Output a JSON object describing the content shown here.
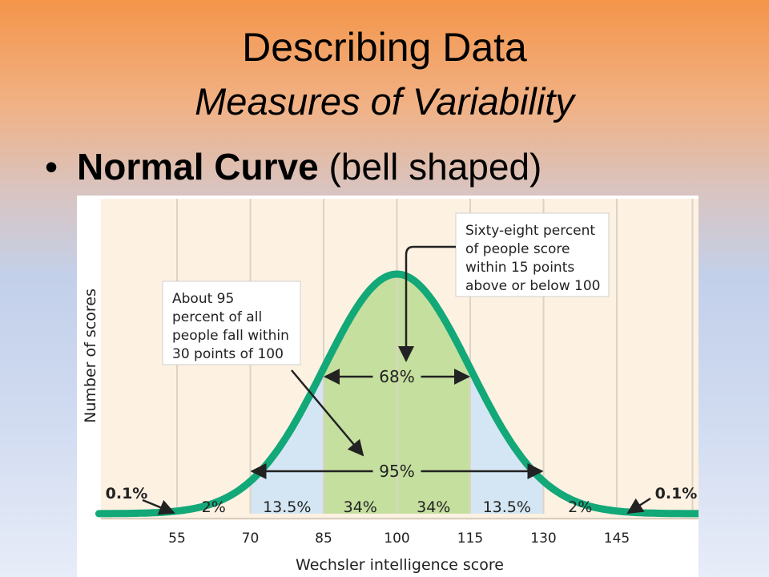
{
  "slide": {
    "title": "Describing Data",
    "subtitle": "Measures of Variability",
    "bullet_bold": "Normal Curve",
    "bullet_rest": "(bell shaped)"
  },
  "chart_data": {
    "type": "area",
    "distribution": "normal",
    "mean": 100,
    "sd": 15,
    "xlabel": "Wechsler intelligence score",
    "ylabel": "Number of scores",
    "x_ticks": [
      55,
      70,
      85,
      100,
      115,
      130,
      145
    ],
    "bands": [
      {
        "from": 40,
        "to": 55,
        "label": "0.1%"
      },
      {
        "from": 55,
        "to": 70,
        "label": "2%"
      },
      {
        "from": 70,
        "to": 85,
        "label": "13.5%"
      },
      {
        "from": 85,
        "to": 100,
        "label": "34%"
      },
      {
        "from": 100,
        "to": 115,
        "label": "34%"
      },
      {
        "from": 115,
        "to": 130,
        "label": "13.5%"
      },
      {
        "from": 130,
        "to": 145,
        "label": "2%"
      },
      {
        "from": 145,
        "to": 160,
        "label": "0.1%"
      }
    ],
    "brackets": [
      {
        "from": 85,
        "to": 115,
        "label": "68%"
      },
      {
        "from": 70,
        "to": 130,
        "label": "95%"
      }
    ],
    "annotations": [
      {
        "lines": [
          "About 95",
          "percent of all",
          "people fall within",
          "30 points of 100"
        ]
      },
      {
        "lines": [
          "Sixty-eight percent",
          "of people score",
          "within 15 points",
          "above or below 100"
        ]
      }
    ],
    "colors": {
      "background": "#fdf1e2",
      "gridline": "#dcd3c7",
      "one_sd_fill": "#c5df9f",
      "two_sd_fill": "#d4e6f3",
      "curve": "#12a878"
    }
  }
}
